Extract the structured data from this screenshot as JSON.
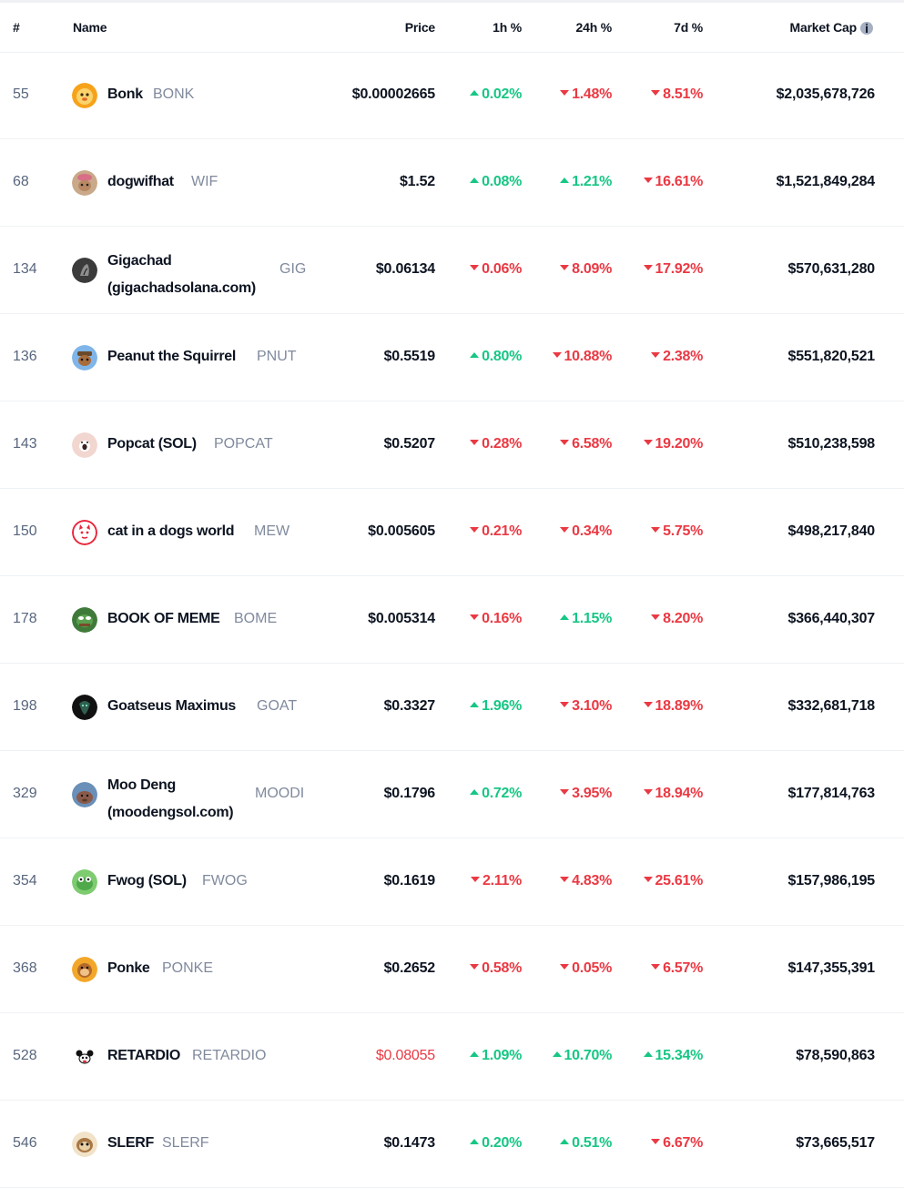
{
  "header": {
    "rank": "#",
    "name": "Name",
    "price": "Price",
    "h1": "1h %",
    "h24": "24h %",
    "d7": "7d %",
    "market_cap": "Market Cap"
  },
  "colors": {
    "up": "#16c784",
    "down": "#ea3943",
    "muted": "#808a9d",
    "text": "#0d1421"
  },
  "rows": [
    {
      "rank": "55",
      "name": "Bonk",
      "symbol": "BONK",
      "price": "$0.00002665",
      "h1": "0.02%",
      "h1_dir": "up",
      "h24": "1.48%",
      "h24_dir": "down",
      "d7": "8.51%",
      "d7_dir": "down",
      "mcap": "$2,035,678,726",
      "icon": "bonk-logo-icon"
    },
    {
      "rank": "68",
      "name": "dogwifhat",
      "symbol": "WIF",
      "price": "$1.52",
      "h1": "0.08%",
      "h1_dir": "up",
      "h24": "1.21%",
      "h24_dir": "up",
      "d7": "16.61%",
      "d7_dir": "down",
      "mcap": "$1,521,849,284",
      "icon": "dogwifhat-logo-icon"
    },
    {
      "rank": "134",
      "name": "Gigachad (gigachadsolana.com)",
      "symbol": "GIG",
      "price": "$0.06134",
      "h1": "0.06%",
      "h1_dir": "down",
      "h24": "8.09%",
      "h24_dir": "down",
      "d7": "17.92%",
      "d7_dir": "down",
      "mcap": "$570,631,280",
      "icon": "gigachad-logo-icon"
    },
    {
      "rank": "136",
      "name": "Peanut the Squirrel",
      "symbol": "PNUT",
      "price": "$0.5519",
      "h1": "0.80%",
      "h1_dir": "up",
      "h24": "10.88%",
      "h24_dir": "down",
      "d7": "2.38%",
      "d7_dir": "down",
      "mcap": "$551,820,521",
      "icon": "peanut-logo-icon"
    },
    {
      "rank": "143",
      "name": "Popcat (SOL)",
      "symbol": "POPCAT",
      "price": "$0.5207",
      "h1": "0.28%",
      "h1_dir": "down",
      "h24": "6.58%",
      "h24_dir": "down",
      "d7": "19.20%",
      "d7_dir": "down",
      "mcap": "$510,238,598",
      "icon": "popcat-logo-icon"
    },
    {
      "rank": "150",
      "name": "cat in a dogs world",
      "symbol": "MEW",
      "price": "$0.005605",
      "h1": "0.21%",
      "h1_dir": "down",
      "h24": "0.34%",
      "h24_dir": "down",
      "d7": "5.75%",
      "d7_dir": "down",
      "mcap": "$498,217,840",
      "icon": "mew-logo-icon"
    },
    {
      "rank": "178",
      "name": "BOOK OF MEME",
      "symbol": "BOME",
      "price": "$0.005314",
      "h1": "0.16%",
      "h1_dir": "down",
      "h24": "1.15%",
      "h24_dir": "up",
      "d7": "8.20%",
      "d7_dir": "down",
      "mcap": "$366,440,307",
      "icon": "bome-logo-icon"
    },
    {
      "rank": "198",
      "name": "Goatseus Maximus",
      "symbol": "GOAT",
      "price": "$0.3327",
      "h1": "1.96%",
      "h1_dir": "up",
      "h24": "3.10%",
      "h24_dir": "down",
      "d7": "18.89%",
      "d7_dir": "down",
      "mcap": "$332,681,718",
      "icon": "goat-logo-icon"
    },
    {
      "rank": "329",
      "name": "Moo Deng (moodengsol.com)",
      "symbol": "MOODI",
      "price": "$0.1796",
      "h1": "0.72%",
      "h1_dir": "up",
      "h24": "3.95%",
      "h24_dir": "down",
      "d7": "18.94%",
      "d7_dir": "down",
      "mcap": "$177,814,763",
      "icon": "moodeng-logo-icon"
    },
    {
      "rank": "354",
      "name": "Fwog (SOL)",
      "symbol": "FWOG",
      "price": "$0.1619",
      "h1": "2.11%",
      "h1_dir": "down",
      "h24": "4.83%",
      "h24_dir": "down",
      "d7": "25.61%",
      "d7_dir": "down",
      "mcap": "$157,986,195",
      "icon": "fwog-logo-icon"
    },
    {
      "rank": "368",
      "name": "Ponke",
      "symbol": "PONKE",
      "price": "$0.2652",
      "h1": "0.58%",
      "h1_dir": "down",
      "h24": "0.05%",
      "h24_dir": "down",
      "d7": "6.57%",
      "d7_dir": "down",
      "mcap": "$147,355,391",
      "icon": "ponke-logo-icon"
    },
    {
      "rank": "528",
      "name": "RETARDIO",
      "symbol": "RETARDIO",
      "price": "$0.08055",
      "price_dir": "down",
      "h1": "1.09%",
      "h1_dir": "up",
      "h24": "10.70%",
      "h24_dir": "up",
      "d7": "15.34%",
      "d7_dir": "up",
      "mcap": "$78,590,863",
      "icon": "retardio-logo-icon"
    },
    {
      "rank": "546",
      "name": "SLERF",
      "symbol": "SLERF",
      "price": "$0.1473",
      "h1": "0.20%",
      "h1_dir": "up",
      "h24": "0.51%",
      "h24_dir": "up",
      "d7": "6.67%",
      "d7_dir": "down",
      "mcap": "$73,665,517",
      "icon": "slerf-logo-icon"
    }
  ]
}
